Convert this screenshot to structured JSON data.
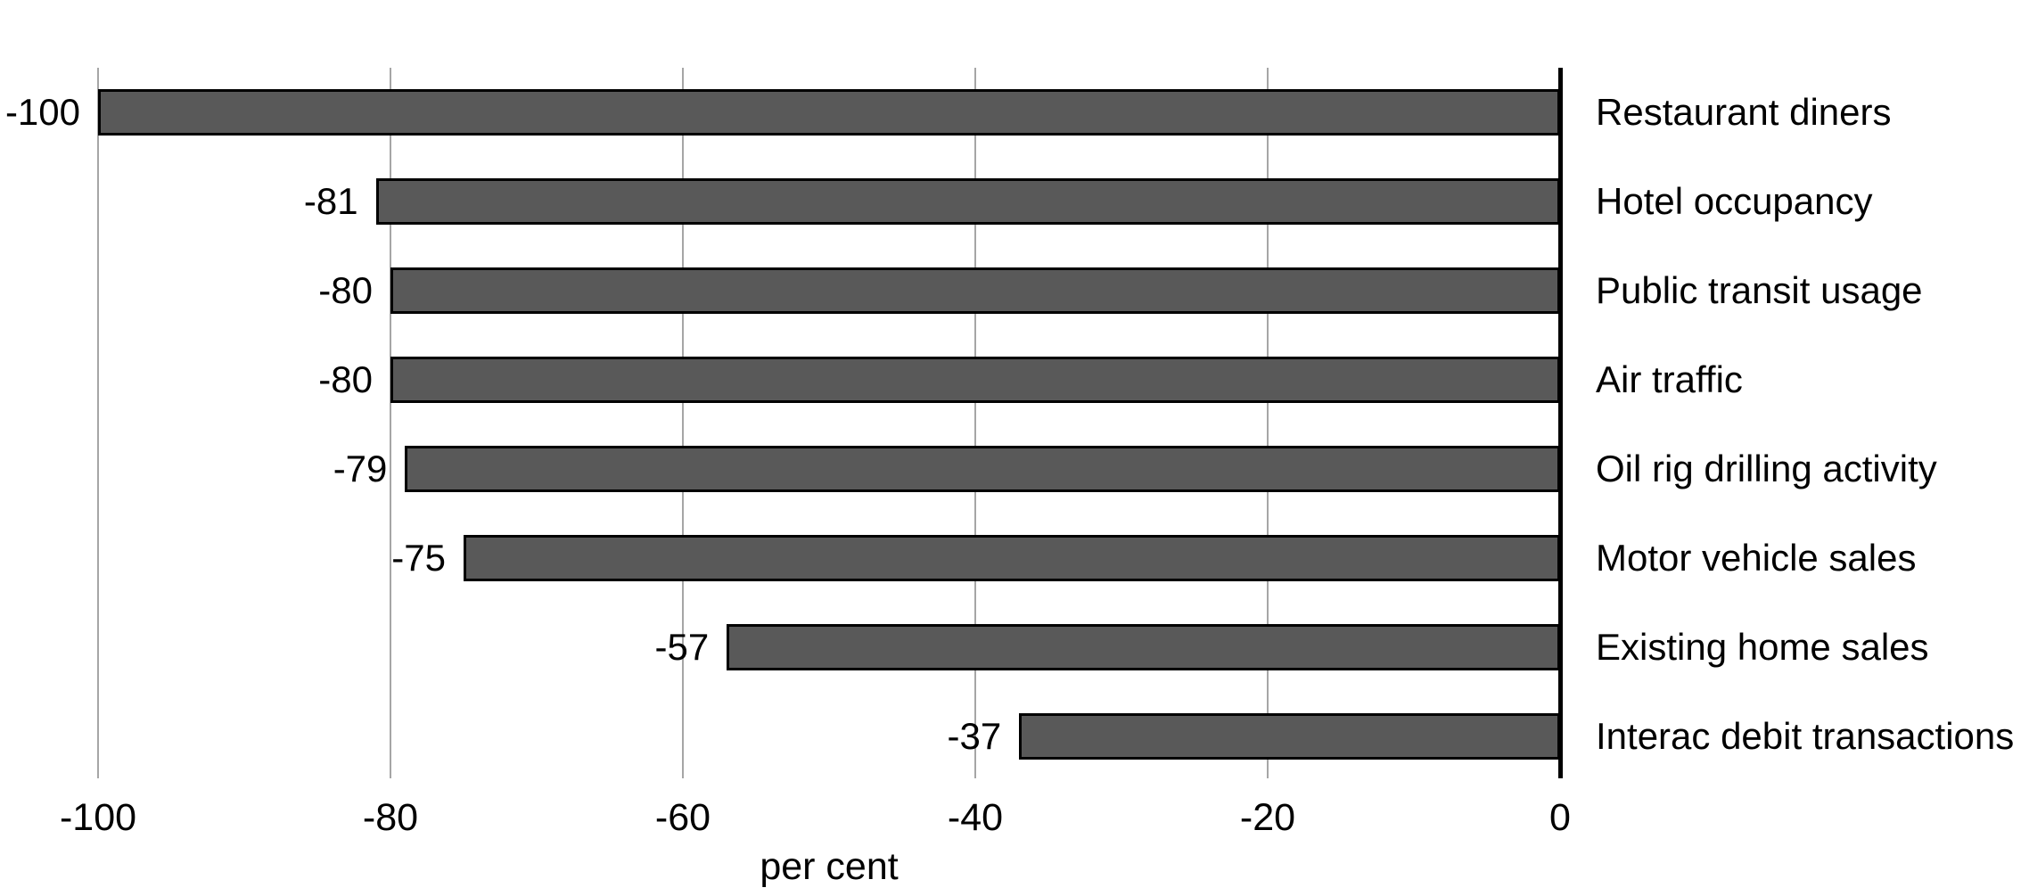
{
  "chart_data": {
    "type": "bar",
    "orientation": "horizontal",
    "title": "",
    "xlabel": "per cent",
    "ylabel": "",
    "categories": [
      "Restaurant diners",
      "Hotel occupancy",
      "Public transit usage",
      "Air traffic",
      "Oil rig drilling activity",
      "Motor vehicle sales",
      "Existing home sales",
      "Interac debit transactions"
    ],
    "values": [
      -100,
      -81,
      -80,
      -80,
      -79,
      -75,
      -57,
      -37
    ],
    "value_labels": [
      "-100",
      "-81",
      "-80",
      "-80",
      "-79",
      "-75",
      "-57",
      "-37"
    ],
    "xlim": [
      -100,
      0
    ],
    "xticks": [
      -100,
      -80,
      -60,
      -40,
      -20,
      0
    ],
    "xtick_labels": [
      "-100",
      "-80",
      "-60",
      "-40",
      "-20",
      "0"
    ],
    "grid": "vertical-gridlines-on",
    "legend": "none",
    "colors": {
      "bar_fill": "#595959",
      "bar_border": "#000000",
      "gridline": "#a6a6a6",
      "zero_axis": "#000000",
      "text": "#000000",
      "background": "#ffffff"
    }
  }
}
